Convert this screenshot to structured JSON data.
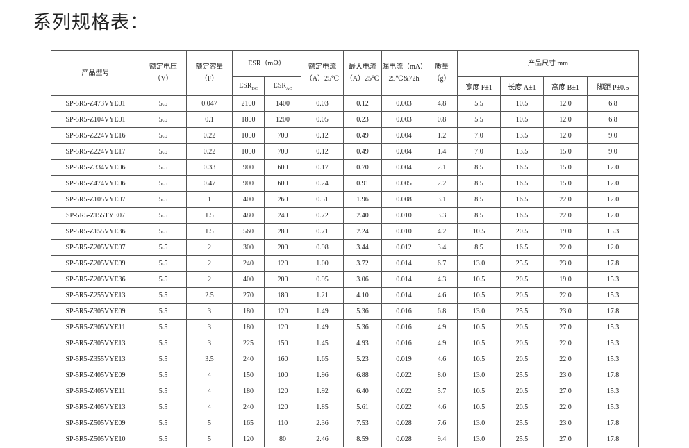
{
  "title": "系列规格表：",
  "table": {
    "header": {
      "model": "产品型号",
      "voltage": [
        "额定电压",
        "（V）"
      ],
      "capacity": [
        "额定容量",
        "（F）"
      ],
      "esr": "ESR（mΩ）",
      "esr_dc": [
        "ESR",
        "DC"
      ],
      "esr_ac": [
        "ESR",
        "AC"
      ],
      "rated_current": [
        "额定电流",
        "（A）25℃"
      ],
      "max_current": [
        "最大电流",
        "（A）25℃"
      ],
      "leakage": [
        "漏电流（mA）",
        "25℃&72h"
      ],
      "mass": [
        "质量",
        "（g）"
      ],
      "size": "产品尺寸 mm",
      "width": "宽度 F±1",
      "length": "长度 A±1",
      "height": "高度 B±1",
      "pitch": "脚距 P±0.5"
    },
    "rows": [
      [
        "SP-5R5-Z473VYE01",
        "5.5",
        "0.047",
        "2100",
        "1400",
        "0.03",
        "0.12",
        "0.003",
        "4.8",
        "5.5",
        "10.5",
        "12.0",
        "6.8"
      ],
      [
        "SP-5R5-Z104VYE01",
        "5.5",
        "0.1",
        "1800",
        "1200",
        "0.05",
        "0.23",
        "0.003",
        "0.8",
        "5.5",
        "10.5",
        "12.0",
        "6.8"
      ],
      [
        "SP-5R5-Z224VYE16",
        "5.5",
        "0.22",
        "1050",
        "700",
        "0.12",
        "0.49",
        "0.004",
        "1.2",
        "7.0",
        "13.5",
        "12.0",
        "9.0"
      ],
      [
        "SP-5R5-Z224VYE17",
        "5.5",
        "0.22",
        "1050",
        "700",
        "0.12",
        "0.49",
        "0.004",
        "1.4",
        "7.0",
        "13.5",
        "15.0",
        "9.0"
      ],
      [
        "SP-5R5-Z334VYE06",
        "5.5",
        "0.33",
        "900",
        "600",
        "0.17",
        "0.70",
        "0.004",
        "2.1",
        "8.5",
        "16.5",
        "15.0",
        "12.0"
      ],
      [
        "SP-5R5-Z474VYE06",
        "5.5",
        "0.47",
        "900",
        "600",
        "0.24",
        "0.91",
        "0.005",
        "2.2",
        "8.5",
        "16.5",
        "15.0",
        "12.0"
      ],
      [
        "SP-5R5-Z105VYE07",
        "5.5",
        "1",
        "400",
        "260",
        "0.51",
        "1.96",
        "0.008",
        "3.1",
        "8.5",
        "16.5",
        "22.0",
        "12.0"
      ],
      [
        "SP-5R5-Z155TYE07",
        "5.5",
        "1.5",
        "480",
        "240",
        "0.72",
        "2.40",
        "0.010",
        "3.3",
        "8.5",
        "16.5",
        "22.0",
        "12.0"
      ],
      [
        "SP-5R5-Z155VYE36",
        "5.5",
        "1.5",
        "560",
        "280",
        "0.71",
        "2.24",
        "0.010",
        "4.2",
        "10.5",
        "20.5",
        "19.0",
        "15.3"
      ],
      [
        "SP-5R5-Z205VYE07",
        "5.5",
        "2",
        "300",
        "200",
        "0.98",
        "3.44",
        "0.012",
        "3.4",
        "8.5",
        "16.5",
        "22.0",
        "12.0"
      ],
      [
        "SP-5R5-Z205VYE09",
        "5.5",
        "2",
        "240",
        "120",
        "1.00",
        "3.72",
        "0.014",
        "6.7",
        "13.0",
        "25.5",
        "23.0",
        "17.8"
      ],
      [
        "SP-5R5-Z205VYE36",
        "5.5",
        "2",
        "400",
        "200",
        "0.95",
        "3.06",
        "0.014",
        "4.3",
        "10.5",
        "20.5",
        "19.0",
        "15.3"
      ],
      [
        "SP-5R5-Z255VYE13",
        "5.5",
        "2.5",
        "270",
        "180",
        "1.21",
        "4.10",
        "0.014",
        "4.6",
        "10.5",
        "20.5",
        "22.0",
        "15.3"
      ],
      [
        "SP-5R5-Z305VYE09",
        "5.5",
        "3",
        "180",
        "120",
        "1.49",
        "5.36",
        "0.016",
        "6.8",
        "13.0",
        "25.5",
        "23.0",
        "17.8"
      ],
      [
        "SP-5R5-Z305VYE11",
        "5.5",
        "3",
        "180",
        "120",
        "1.49",
        "5.36",
        "0.016",
        "4.9",
        "10.5",
        "20.5",
        "27.0",
        "15.3"
      ],
      [
        "SP-5R5-Z305VYE13",
        "5.5",
        "3",
        "225",
        "150",
        "1.45",
        "4.93",
        "0.016",
        "4.9",
        "10.5",
        "20.5",
        "22.0",
        "15.3"
      ],
      [
        "SP-5R5-Z355VYE13",
        "5.5",
        "3.5",
        "240",
        "160",
        "1.65",
        "5.23",
        "0.019",
        "4.6",
        "10.5",
        "20.5",
        "22.0",
        "15.3"
      ],
      [
        "SP-5R5-Z405VYE09",
        "5.5",
        "4",
        "150",
        "100",
        "1.96",
        "6.88",
        "0.022",
        "8.0",
        "13.0",
        "25.5",
        "23.0",
        "17.8"
      ],
      [
        "SP-5R5-Z405VYE11",
        "5.5",
        "4",
        "180",
        "120",
        "1.92",
        "6.40",
        "0.022",
        "5.7",
        "10.5",
        "20.5",
        "27.0",
        "15.3"
      ],
      [
        "SP-5R5-Z405VYE13",
        "5.5",
        "4",
        "240",
        "120",
        "1.85",
        "5.61",
        "0.022",
        "4.6",
        "10.5",
        "20.5",
        "22.0",
        "15.3"
      ],
      [
        "SP-5R5-Z505VYE09",
        "5.5",
        "5",
        "165",
        "110",
        "2.36",
        "7.53",
        "0.028",
        "7.6",
        "13.0",
        "25.5",
        "23.0",
        "17.8"
      ],
      [
        "SP-5R5-Z505VYE10",
        "5.5",
        "5",
        "120",
        "80",
        "2.46",
        "8.59",
        "0.028",
        "9.4",
        "13.0",
        "25.5",
        "27.0",
        "17.8"
      ]
    ]
  }
}
